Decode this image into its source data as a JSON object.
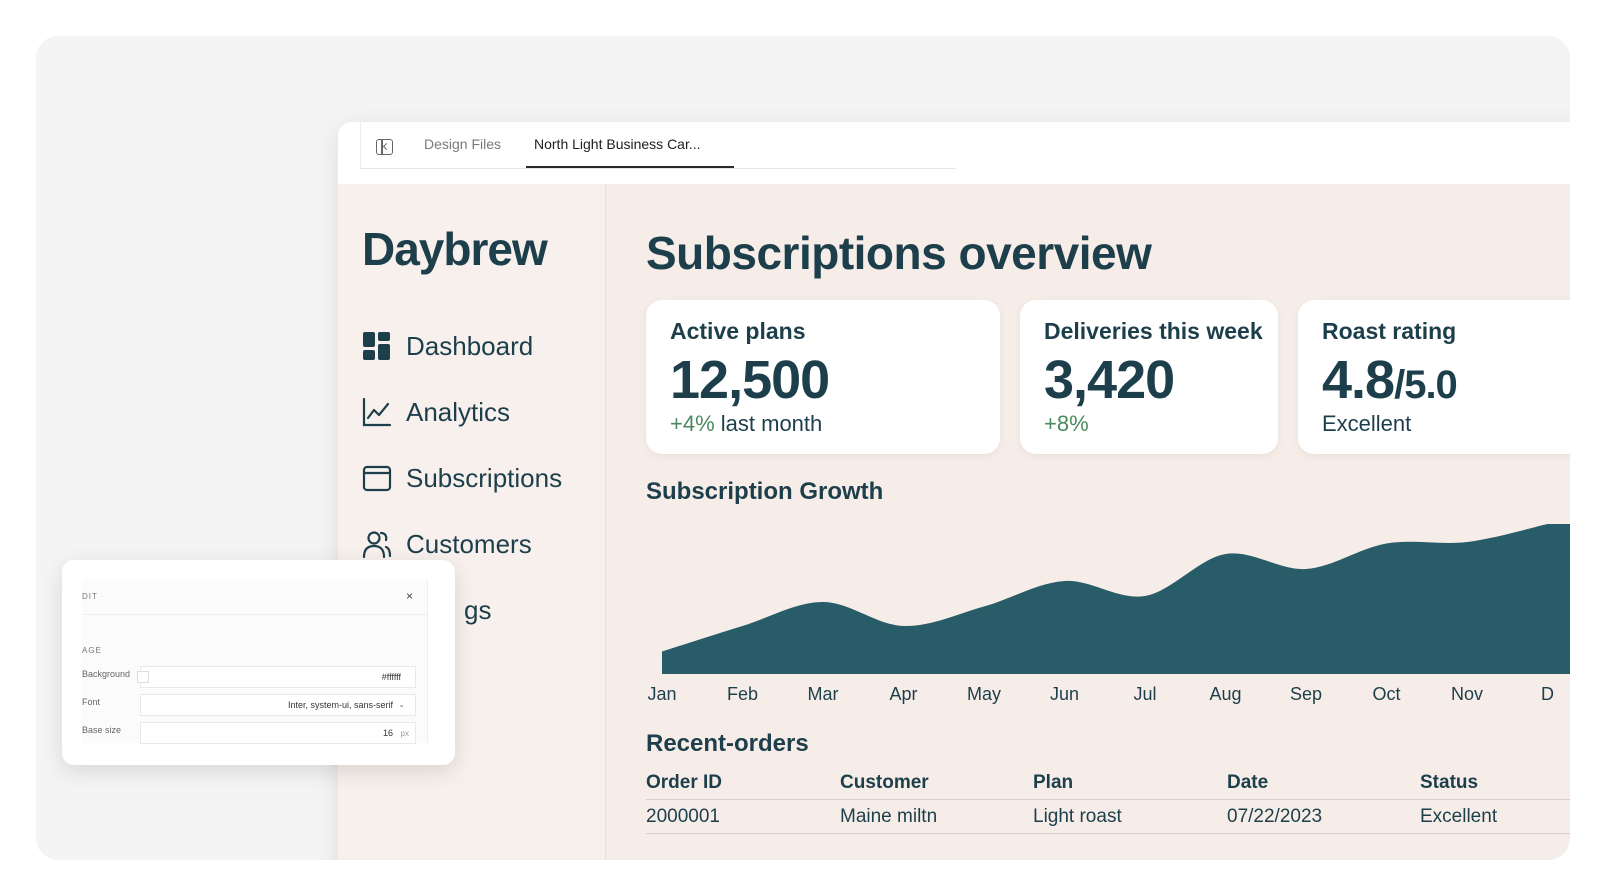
{
  "tabs": [
    {
      "label": "Design Files"
    },
    {
      "label": "North Light Business Car..."
    }
  ],
  "sidebar": {
    "brand": "Daybrew",
    "items": [
      {
        "label": "Dashboard",
        "icon": "dashboard-icon"
      },
      {
        "label": "Analytics",
        "icon": "analytics-icon"
      },
      {
        "label": "Subscriptions",
        "icon": "subscriptions-icon"
      },
      {
        "label": "Customers",
        "icon": "customers-icon"
      },
      {
        "label": "gs",
        "icon": ""
      }
    ]
  },
  "main": {
    "title": "Subscriptions overview",
    "cards": [
      {
        "label": "Active plans",
        "value": "12,500",
        "suffix": "",
        "delta": "+4%",
        "sub": " last month"
      },
      {
        "label": "Deliveries this week",
        "value": "3,420",
        "suffix": "",
        "delta": "+8%",
        "sub": ""
      },
      {
        "label": "Roast rating",
        "value": "4.8",
        "suffix": "/5.0",
        "delta": "",
        "sub": "Excellent"
      }
    ],
    "growth_title": "Subscription Growth",
    "orders_title": "Recent-orders",
    "orders": {
      "columns": [
        "Order ID",
        "Customer",
        "Plan",
        "Date",
        "Status"
      ],
      "rows": [
        [
          "2000001",
          "Maine miltn",
          "Light roast",
          "07/22/2023",
          "Excellent"
        ]
      ]
    }
  },
  "chart_data": {
    "type": "area",
    "title": "Subscription Growth",
    "categories": [
      "Jan",
      "Feb",
      "Mar",
      "Apr",
      "May",
      "Jun",
      "Jul",
      "Aug",
      "Sep",
      "Oct",
      "Nov",
      "D"
    ],
    "values": [
      15,
      32,
      48,
      32,
      45,
      62,
      52,
      80,
      70,
      87,
      88,
      100
    ],
    "ylim": [
      0,
      100
    ],
    "grid": false,
    "colors": {
      "fill": "#285c68"
    }
  },
  "edit_panel": {
    "title": "DIT",
    "section": "AGE",
    "fields": [
      {
        "label": "Background",
        "value": "#ffffff"
      },
      {
        "label": "Font",
        "value": "Inter, system-ui, sans-serif"
      },
      {
        "label": "Base size",
        "value": "16",
        "unit": "px"
      }
    ],
    "close": "×"
  }
}
